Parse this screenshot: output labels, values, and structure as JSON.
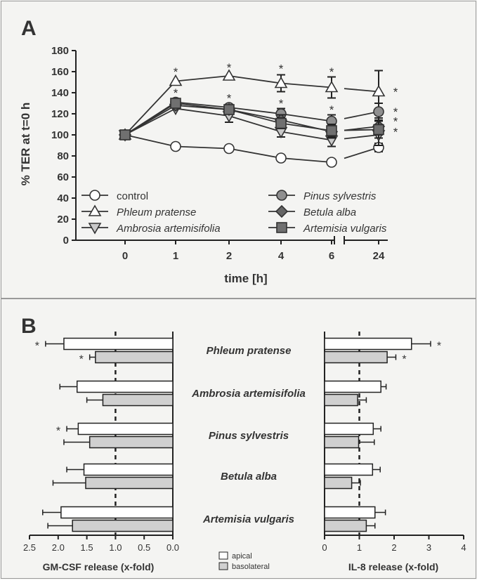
{
  "panel_a": {
    "label": "A",
    "ylabel": "% TER at t=0 h",
    "xlabel": "time [h]"
  },
  "panel_b": {
    "label": "B",
    "xlabel_left": "GM-CSF release (x-fold)",
    "xlabel_right": "IL-8 release (x-fold)"
  },
  "chart_data": [
    {
      "type": "line",
      "panel": "A",
      "xlabel": "time [h]",
      "ylabel": "% TER at t=0 h",
      "x_ticks": [
        "0",
        "1",
        "2",
        "4",
        "6",
        "24"
      ],
      "ylim": [
        0,
        180
      ],
      "y_ticks": [
        0,
        20,
        40,
        60,
        80,
        100,
        120,
        140,
        160,
        180
      ],
      "grid": false,
      "legend_position": "bottom",
      "series": [
        {
          "name": "control",
          "marker": "open-circle",
          "fill": "#ffffff",
          "x": [
            "0",
            "1",
            "2",
            "4",
            "6",
            "24"
          ],
          "values": [
            100,
            89,
            87,
            78,
            74,
            88
          ],
          "err": [
            0,
            0,
            0,
            0,
            0,
            4
          ],
          "stars": []
        },
        {
          "name": "Phleum pratense",
          "marker": "open-triangle-up",
          "fill": "#ffffff",
          "x": [
            "0",
            "1",
            "2",
            "4",
            "6",
            "24"
          ],
          "values": [
            100,
            151,
            156,
            149,
            145,
            141
          ],
          "err": [
            0,
            0,
            0,
            8,
            10,
            20
          ],
          "stars": [
            {
              "x": "1",
              "value": 160
            },
            {
              "x": "2",
              "value": 164
            },
            {
              "x": "4",
              "value": 163
            },
            {
              "x": "6",
              "value": 160
            },
            {
              "x": "24",
              "value": 141
            }
          ]
        },
        {
          "name": "Ambrosia artemisifolia",
          "marker": "open-triangle-down",
          "fill": "#c9c9c9",
          "x": [
            "0",
            "1",
            "2",
            "4",
            "6",
            "24"
          ],
          "values": [
            100,
            125,
            118,
            103,
            95,
            100
          ],
          "err": [
            0,
            0,
            6,
            5,
            6,
            10
          ],
          "stars": []
        },
        {
          "name": "Pinus sylvestris",
          "marker": "circle",
          "fill": "#8f8f8f",
          "x": [
            "0",
            "1",
            "2",
            "4",
            "6",
            "24"
          ],
          "values": [
            100,
            131,
            126,
            120,
            113,
            122
          ],
          "err": [
            0,
            0,
            0,
            5,
            6,
            8
          ],
          "stars": [
            {
              "x": "1",
              "value": 140
            },
            {
              "x": "2",
              "value": 135
            },
            {
              "x": "4",
              "value": 130
            },
            {
              "x": "6",
              "value": 124
            },
            {
              "x": "24",
              "value": 122
            }
          ]
        },
        {
          "name": "Betula alba",
          "marker": "diamond",
          "fill": "#666666",
          "x": [
            "0",
            "1",
            "2",
            "4",
            "6",
            "24"
          ],
          "values": [
            100,
            128,
            124,
            114,
            103,
            108
          ],
          "err": [
            0,
            0,
            0,
            5,
            6,
            8
          ],
          "stars": [
            {
              "x": "24",
              "value": 113
            }
          ]
        },
        {
          "name": "Artemisia vulgaris",
          "marker": "square",
          "fill": "#707070",
          "x": [
            "0",
            "1",
            "2",
            "4",
            "6",
            "24"
          ],
          "values": [
            100,
            130,
            124,
            111,
            104,
            105
          ],
          "err": [
            0,
            0,
            0,
            5,
            6,
            8
          ],
          "stars": [
            {
              "x": "24",
              "value": 103
            }
          ]
        }
      ]
    },
    {
      "type": "bar",
      "panel": "B-left",
      "orientation": "horizontal",
      "direction": "reversed",
      "xlabel": "GM-CSF release (x-fold)",
      "xlim": [
        0,
        2.5
      ],
      "x_ticks": [
        "2.5",
        "2.0",
        "1.5",
        "1.0",
        "0.5",
        "0.0"
      ],
      "reference_line": 1.0,
      "categories": [
        "Phleum pratense",
        "Ambrosia artemisifolia",
        "Pinus sylvestris",
        "Betula alba",
        "Artemisia vulgaris"
      ],
      "series": [
        {
          "name": "apical",
          "fill": "#ffffff",
          "values": [
            1.9,
            1.67,
            1.65,
            1.55,
            1.95
          ],
          "err": [
            0.32,
            0.3,
            0.2,
            0.3,
            0.32
          ],
          "stars": [
            true,
            false,
            true,
            false,
            false
          ]
        },
        {
          "name": "basolateral",
          "fill": "#d0d0d0",
          "values": [
            1.35,
            1.22,
            1.45,
            1.52,
            1.75
          ],
          "err": [
            0.1,
            0.28,
            0.45,
            0.57,
            0.43
          ],
          "stars": [
            true,
            false,
            false,
            false,
            false
          ]
        }
      ]
    },
    {
      "type": "bar",
      "panel": "B-right",
      "orientation": "horizontal",
      "xlabel": "IL-8 release (x-fold)",
      "xlim": [
        0,
        4
      ],
      "x_ticks": [
        "0",
        "1",
        "2",
        "3",
        "4"
      ],
      "reference_line": 1.0,
      "categories": [
        "Phleum pratense",
        "Ambrosia artemisifolia",
        "Pinus sylvestris",
        "Betula alba",
        "Artemisia vulgaris"
      ],
      "series": [
        {
          "name": "apical",
          "fill": "#ffffff",
          "values": [
            2.5,
            1.62,
            1.4,
            1.38,
            1.45
          ],
          "err": [
            0.55,
            0.15,
            0.22,
            0.22,
            0.3
          ],
          "stars": [
            true,
            false,
            false,
            false,
            false
          ]
        },
        {
          "name": "basolateral",
          "fill": "#d0d0d0",
          "values": [
            1.8,
            0.95,
            0.98,
            0.78,
            1.2
          ],
          "err": [
            0.25,
            0.25,
            0.45,
            0.25,
            0.25
          ],
          "stars": [
            true,
            false,
            false,
            false,
            false
          ]
        }
      ]
    }
  ],
  "legend_b": {
    "apical": "apical",
    "basolateral": "basolateral"
  },
  "star": "*"
}
